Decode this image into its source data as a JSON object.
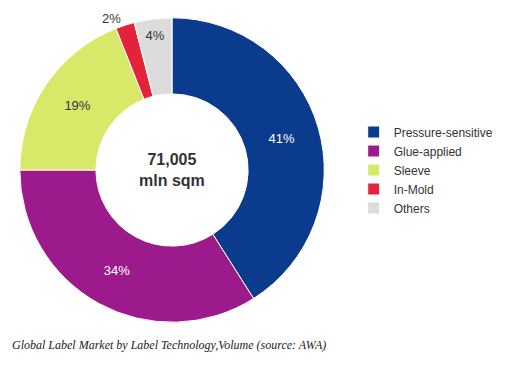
{
  "chart_data": {
    "type": "pie",
    "categories": [
      "Pressure-sensitive",
      "Glue-applied",
      "Sleeve",
      "In-Mold",
      "Others"
    ],
    "values": [
      41,
      34,
      19,
      2,
      4
    ],
    "value_labels": [
      "41%",
      "34%",
      "19%",
      "2%",
      "4%"
    ],
    "colors": [
      "#0b3b8c",
      "#9c1a8c",
      "#d8e96a",
      "#e2233b",
      "#dcdcdc"
    ],
    "data_labels": true,
    "legend": "right",
    "annotations": [
      "71,005",
      "mln sqm"
    ],
    "caption": "Global Label Market by Label Technology,Volume (source: AWA)"
  }
}
